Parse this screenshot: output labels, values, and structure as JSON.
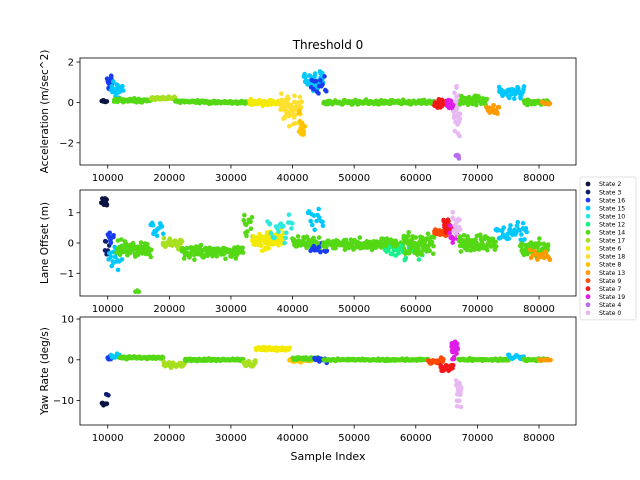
{
  "chart_data": {
    "type": "scatter",
    "title": "Threshold 0",
    "xlabel": "Sample Index",
    "xlim": [
      5500,
      86000
    ],
    "xticks": [
      10000,
      20000,
      30000,
      40000,
      50000,
      60000,
      70000,
      80000
    ],
    "xtick_labels": [
      "10000",
      "20000",
      "30000",
      "40000",
      "50000",
      "60000",
      "70000",
      "80000"
    ],
    "legend": {
      "placement": "right",
      "entries": [
        {
          "label": "State 2",
          "color": "#0b1440"
        },
        {
          "label": "State 3",
          "color": "#0b1e70"
        },
        {
          "label": "State 16",
          "color": "#1a3cf0"
        },
        {
          "label": "State 15",
          "color": "#00c8ff"
        },
        {
          "label": "State 10",
          "color": "#2ee8e0"
        },
        {
          "label": "State 12",
          "color": "#18f08a"
        },
        {
          "label": "State 14",
          "color": "#55d815"
        },
        {
          "label": "State 17",
          "color": "#a8e020"
        },
        {
          "label": "State 6",
          "color": "#f4ea00"
        },
        {
          "label": "State 18",
          "color": "#ffe030"
        },
        {
          "label": "State 8",
          "color": "#ffc400"
        },
        {
          "label": "State 13",
          "color": "#ff9a00"
        },
        {
          "label": "State 9",
          "color": "#ff4800"
        },
        {
          "label": "State 7",
          "color": "#f51818"
        },
        {
          "label": "State 19",
          "color": "#e01ce8"
        },
        {
          "label": "State 4",
          "color": "#b86cf0"
        },
        {
          "label": "State 0",
          "color": "#e8b8f2"
        }
      ]
    },
    "panels": [
      {
        "ylabel": "Acceleration (m/sec^2)",
        "ylim": [
          -3.1,
          2.2
        ],
        "yticks": [
          -2,
          0,
          2
        ],
        "ytick_labels": [
          "−2",
          "0",
          "2"
        ],
        "segments": [
          {
            "x0": 9000,
            "x1": 9800,
            "state": "State 2",
            "center": 0.05,
            "noise": 0.08,
            "n": 10
          },
          {
            "x0": 9900,
            "x1": 10700,
            "state": "State 16",
            "center": 1.0,
            "noise": 0.6,
            "n": 16
          },
          {
            "x0": 10600,
            "x1": 12500,
            "state": "State 15",
            "center": 0.6,
            "noise": 0.5,
            "n": 22
          },
          {
            "x0": 11000,
            "x1": 17000,
            "state": "State 14",
            "center": 0.1,
            "noise": 0.12,
            "n": 70
          },
          {
            "x0": 17000,
            "x1": 21000,
            "state": "State 17",
            "center": 0.2,
            "noise": 0.1,
            "n": 40
          },
          {
            "x0": 21000,
            "x1": 26000,
            "state": "State 14",
            "center": 0.05,
            "noise": 0.1,
            "n": 55
          },
          {
            "x0": 26000,
            "x1": 33000,
            "state": "State 14",
            "center": 0.0,
            "noise": 0.1,
            "n": 70
          },
          {
            "x0": 33000,
            "x1": 38000,
            "state": "State 6",
            "center": 0.0,
            "noise": 0.18,
            "n": 60
          },
          {
            "x0": 38000,
            "x1": 41500,
            "state": "State 18",
            "center": -0.3,
            "noise": 1.0,
            "n": 60
          },
          {
            "x0": 41000,
            "x1": 42000,
            "state": "State 8",
            "center": -1.2,
            "noise": 1.0,
            "n": 18
          },
          {
            "x0": 41800,
            "x1": 45000,
            "state": "State 15",
            "center": 1.1,
            "noise": 0.6,
            "n": 35
          },
          {
            "x0": 43000,
            "x1": 45500,
            "state": "State 16",
            "center": 0.7,
            "noise": 0.8,
            "n": 14
          },
          {
            "x0": 45000,
            "x1": 56000,
            "state": "State 14",
            "center": 0.0,
            "noise": 0.15,
            "n": 120
          },
          {
            "x0": 56000,
            "x1": 63000,
            "state": "State 14",
            "center": 0.0,
            "noise": 0.15,
            "n": 75
          },
          {
            "x0": 63000,
            "x1": 65000,
            "state": "State 7",
            "center": -0.1,
            "noise": 0.35,
            "n": 30
          },
          {
            "x0": 65000,
            "x1": 66200,
            "state": "State 19",
            "center": -0.1,
            "noise": 0.4,
            "n": 20
          },
          {
            "x0": 66200,
            "x1": 67200,
            "state": "State 0",
            "center": -0.5,
            "noise": 2.1,
            "n": 28
          },
          {
            "x0": 66500,
            "x1": 67000,
            "state": "State 4",
            "center": -2.7,
            "noise": 0.15,
            "n": 6
          },
          {
            "x0": 67200,
            "x1": 71500,
            "state": "State 14",
            "center": 0.1,
            "noise": 0.35,
            "n": 55
          },
          {
            "x0": 71500,
            "x1": 73500,
            "state": "State 13",
            "center": -0.4,
            "noise": 0.3,
            "n": 20
          },
          {
            "x0": 73500,
            "x1": 77500,
            "state": "State 15",
            "center": 0.5,
            "noise": 0.45,
            "n": 40
          },
          {
            "x0": 77500,
            "x1": 81500,
            "state": "State 14",
            "center": 0.0,
            "noise": 0.2,
            "n": 50
          },
          {
            "x0": 80500,
            "x1": 81800,
            "state": "State 13",
            "center": -0.05,
            "noise": 0.1,
            "n": 10
          }
        ]
      },
      {
        "ylabel": "Lane Offset (m)",
        "ylim": [
          -1.75,
          1.75
        ],
        "yticks": [
          -1,
          0,
          1
        ],
        "ytick_labels": [
          "−1",
          "0",
          "1"
        ],
        "segments": [
          {
            "x0": 9000,
            "x1": 9900,
            "state": "State 2",
            "center": 1.35,
            "noise": 0.2,
            "n": 14
          },
          {
            "x0": 9500,
            "x1": 10300,
            "state": "State 3",
            "center": -0.2,
            "noise": 0.4,
            "n": 8
          },
          {
            "x0": 10000,
            "x1": 11000,
            "state": "State 16",
            "center": 0.2,
            "noise": 0.3,
            "n": 10
          },
          {
            "x0": 10200,
            "x1": 12500,
            "state": "State 15",
            "center": -0.4,
            "noise": 0.6,
            "n": 22
          },
          {
            "x0": 11500,
            "x1": 17000,
            "state": "State 14",
            "center": -0.2,
            "noise": 0.35,
            "n": 80
          },
          {
            "x0": 14500,
            "x1": 15000,
            "state": "State 14",
            "center": -1.6,
            "noise": 0.05,
            "n": 3
          },
          {
            "x0": 17000,
            "x1": 19000,
            "state": "State 15",
            "center": 0.5,
            "noise": 0.5,
            "n": 14
          },
          {
            "x0": 19000,
            "x1": 22000,
            "state": "State 17",
            "center": 0.0,
            "noise": 0.3,
            "n": 30
          },
          {
            "x0": 22000,
            "x1": 32000,
            "state": "State 14",
            "center": -0.3,
            "noise": 0.3,
            "n": 120
          },
          {
            "x0": 32000,
            "x1": 33500,
            "state": "State 14",
            "center": 0.6,
            "noise": 0.6,
            "n": 14
          },
          {
            "x0": 33500,
            "x1": 38500,
            "state": "State 6",
            "center": 0.1,
            "noise": 0.4,
            "n": 80
          },
          {
            "x0": 36000,
            "x1": 40000,
            "state": "State 10",
            "center": 0.5,
            "noise": 0.5,
            "n": 22
          },
          {
            "x0": 40000,
            "x1": 44500,
            "state": "State 14",
            "center": 0.0,
            "noise": 0.4,
            "n": 50
          },
          {
            "x0": 43000,
            "x1": 45500,
            "state": "State 16",
            "center": -0.2,
            "noise": 0.3,
            "n": 14
          },
          {
            "x0": 42500,
            "x1": 45000,
            "state": "State 15",
            "center": 0.8,
            "noise": 0.5,
            "n": 14
          },
          {
            "x0": 45000,
            "x1": 58000,
            "state": "State 14",
            "center": -0.05,
            "noise": 0.25,
            "n": 160
          },
          {
            "x0": 55000,
            "x1": 62000,
            "state": "State 12",
            "center": -0.3,
            "noise": 0.4,
            "n": 30
          },
          {
            "x0": 58000,
            "x1": 63000,
            "state": "State 14",
            "center": 0.0,
            "noise": 0.55,
            "n": 70
          },
          {
            "x0": 63000,
            "x1": 65000,
            "state": "State 9",
            "center": 0.35,
            "noise": 0.2,
            "n": 25
          },
          {
            "x0": 64500,
            "x1": 65800,
            "state": "State 7",
            "center": 0.6,
            "noise": 0.4,
            "n": 18
          },
          {
            "x0": 65500,
            "x1": 66800,
            "state": "State 19",
            "center": 0.3,
            "noise": 0.4,
            "n": 16
          },
          {
            "x0": 66000,
            "x1": 67200,
            "state": "State 0",
            "center": 0.6,
            "noise": 0.8,
            "n": 18
          },
          {
            "x0": 67000,
            "x1": 73000,
            "state": "State 14",
            "center": 0.0,
            "noise": 0.4,
            "n": 80
          },
          {
            "x0": 73000,
            "x1": 78000,
            "state": "State 15",
            "center": 0.3,
            "noise": 0.45,
            "n": 40
          },
          {
            "x0": 77000,
            "x1": 81500,
            "state": "State 14",
            "center": -0.2,
            "noise": 0.35,
            "n": 55
          },
          {
            "x0": 78500,
            "x1": 81800,
            "state": "State 13",
            "center": -0.4,
            "noise": 0.3,
            "n": 15
          }
        ]
      },
      {
        "ylabel": "Yaw Rate (deg/s)",
        "ylim": [
          -16,
          10.5
        ],
        "yticks": [
          -10,
          0,
          10
        ],
        "ytick_labels": [
          "−10",
          "0",
          "10"
        ],
        "segments": [
          {
            "x0": 9000,
            "x1": 9800,
            "state": "State 2",
            "center": -10.8,
            "noise": 0.4,
            "n": 10
          },
          {
            "x0": 9800,
            "x1": 10100,
            "state": "State 3",
            "center": -8.6,
            "noise": 0.3,
            "n": 3
          },
          {
            "x0": 10000,
            "x1": 10600,
            "state": "State 16",
            "center": 0.5,
            "noise": 0.8,
            "n": 8
          },
          {
            "x0": 10500,
            "x1": 12000,
            "state": "State 15",
            "center": 0.8,
            "noise": 0.8,
            "n": 12
          },
          {
            "x0": 12000,
            "x1": 19000,
            "state": "State 14",
            "center": 0.5,
            "noise": 0.5,
            "n": 80
          },
          {
            "x0": 19000,
            "x1": 22500,
            "state": "State 17",
            "center": -1.2,
            "noise": 0.8,
            "n": 35
          },
          {
            "x0": 22500,
            "x1": 32000,
            "state": "State 14",
            "center": 0.0,
            "noise": 0.4,
            "n": 110
          },
          {
            "x0": 32000,
            "x1": 34000,
            "state": "State 17",
            "center": -1.0,
            "noise": 1.2,
            "n": 20
          },
          {
            "x0": 34000,
            "x1": 39500,
            "state": "State 6",
            "center": 2.7,
            "noise": 0.6,
            "n": 90
          },
          {
            "x0": 39500,
            "x1": 43000,
            "state": "State 8",
            "center": -0.2,
            "noise": 0.8,
            "n": 25
          },
          {
            "x0": 40000,
            "x1": 44000,
            "state": "State 14",
            "center": 0.3,
            "noise": 0.6,
            "n": 35
          },
          {
            "x0": 43500,
            "x1": 45500,
            "state": "State 16",
            "center": 0.0,
            "noise": 1.0,
            "n": 14
          },
          {
            "x0": 45000,
            "x1": 62000,
            "state": "State 14",
            "center": 0.0,
            "noise": 0.35,
            "n": 190
          },
          {
            "x0": 62000,
            "x1": 64500,
            "state": "State 9",
            "center": -0.5,
            "noise": 1.2,
            "n": 20
          },
          {
            "x0": 64000,
            "x1": 66000,
            "state": "State 7",
            "center": -2.0,
            "noise": 1.3,
            "n": 20
          },
          {
            "x0": 65800,
            "x1": 66800,
            "state": "State 19",
            "center": 2.5,
            "noise": 4.0,
            "n": 30
          },
          {
            "x0": 66600,
            "x1": 67400,
            "state": "State 0",
            "center": -7.0,
            "noise": 6.0,
            "n": 24
          },
          {
            "x0": 67000,
            "x1": 75000,
            "state": "State 14",
            "center": 0.0,
            "noise": 0.4,
            "n": 85
          },
          {
            "x0": 75000,
            "x1": 77500,
            "state": "State 15",
            "center": 0.7,
            "noise": 1.0,
            "n": 16
          },
          {
            "x0": 77500,
            "x1": 81500,
            "state": "State 14",
            "center": 0.0,
            "noise": 0.4,
            "n": 45
          },
          {
            "x0": 80000,
            "x1": 81800,
            "state": "State 13",
            "center": 0.0,
            "noise": 0.3,
            "n": 10
          }
        ]
      }
    ]
  }
}
